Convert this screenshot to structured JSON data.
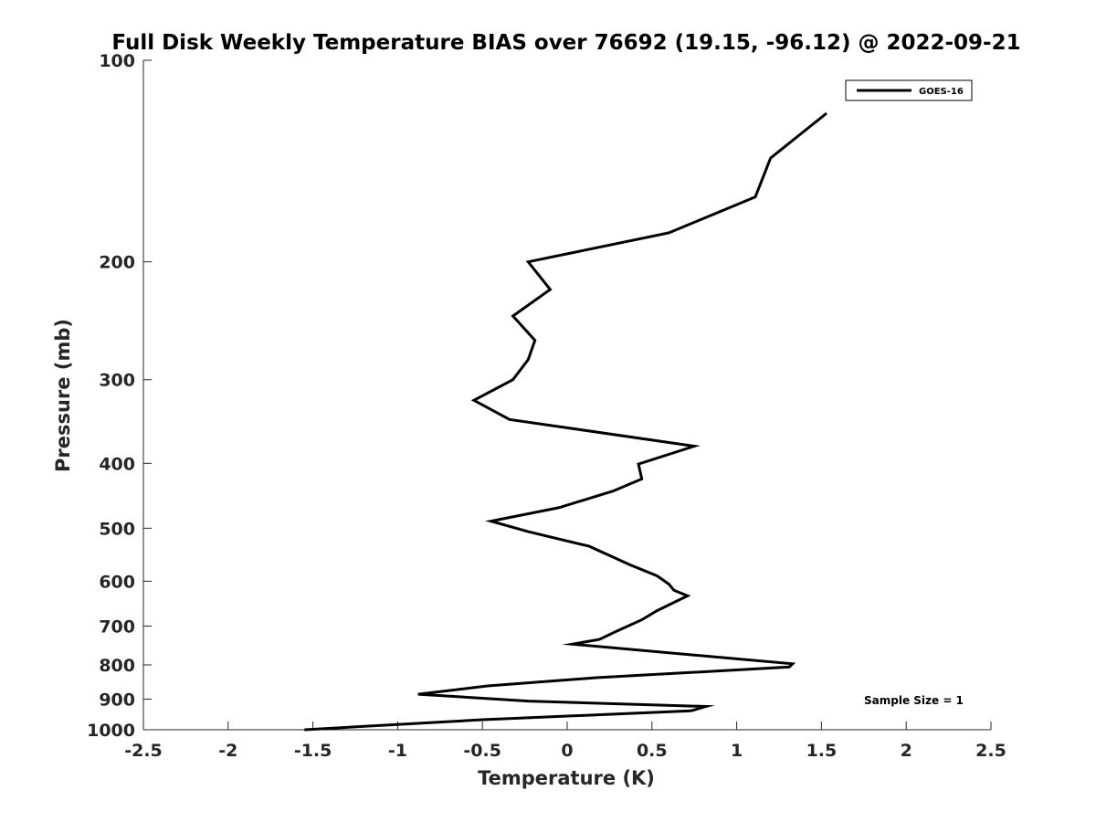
{
  "chart_data": {
    "type": "line",
    "title": "Full Disk Weekly Temperature BIAS over 76692 (19.15, -96.12) @ 2022-09-21",
    "xlabel": "Temperature (K)",
    "ylabel": "Pressure (mb)",
    "xlim": [
      -2.5,
      2.5
    ],
    "ylim": [
      100,
      1000
    ],
    "y_scale": "log",
    "y_reversed": true,
    "grid": false,
    "legend_position": "top-right",
    "x_ticks": [
      -2.5,
      -2,
      -1.5,
      -1,
      -0.5,
      0,
      0.5,
      1,
      1.5,
      2,
      2.5
    ],
    "x_tick_labels": [
      "-2.5",
      "-2",
      "-1.5",
      "-1",
      "-0.5",
      "0",
      "0.5",
      "1",
      "1.5",
      "2",
      "2.5"
    ],
    "y_ticks": [
      100,
      200,
      300,
      400,
      500,
      600,
      700,
      800,
      900,
      1000
    ],
    "y_tick_labels": [
      "100",
      "200",
      "300",
      "400",
      "500",
      "600",
      "700",
      "800",
      "900",
      "1000"
    ],
    "series": [
      {
        "name": "GOES-16",
        "color": "#000000",
        "points": [
          [
            1.53,
            120
          ],
          [
            1.2,
            140
          ],
          [
            1.11,
            160
          ],
          [
            0.6,
            181
          ],
          [
            -0.23,
            200
          ],
          [
            -0.1,
            220
          ],
          [
            -0.32,
            241
          ],
          [
            -0.19,
            262
          ],
          [
            -0.23,
            280
          ],
          [
            -0.32,
            300
          ],
          [
            -0.55,
            322
          ],
          [
            -0.34,
            344
          ],
          [
            0.75,
            377
          ],
          [
            0.42,
            401
          ],
          [
            0.44,
            422
          ],
          [
            0.27,
            440
          ],
          [
            -0.05,
            466
          ],
          [
            -0.45,
            488
          ],
          [
            -0.23,
            506
          ],
          [
            0.13,
            532
          ],
          [
            0.37,
            567
          ],
          [
            0.53,
            589
          ],
          [
            0.6,
            606
          ],
          [
            0.63,
            619
          ],
          [
            0.71,
            631
          ],
          [
            0.53,
            664
          ],
          [
            0.44,
            685
          ],
          [
            0.29,
            713
          ],
          [
            0.19,
            733
          ],
          [
            0.03,
            745
          ],
          [
            1.33,
            797
          ],
          [
            1.31,
            806
          ],
          [
            0.17,
            836
          ],
          [
            -0.47,
            860
          ],
          [
            -0.88,
            885
          ],
          [
            -0.23,
            906
          ],
          [
            0.82,
            923
          ],
          [
            0.73,
            937
          ],
          [
            -0.5,
            966
          ],
          [
            -1.55,
            1000
          ]
        ]
      }
    ],
    "annotations": [
      {
        "text": "Sample Size = 1"
      }
    ]
  }
}
